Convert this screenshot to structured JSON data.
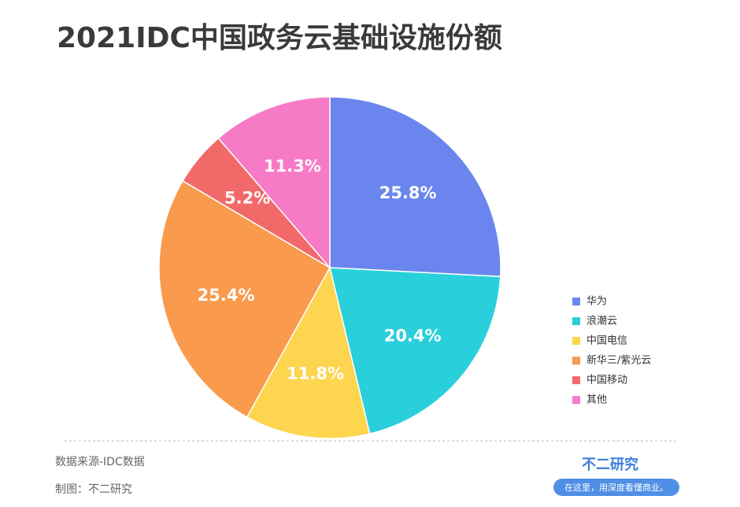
{
  "chart_data": {
    "type": "pie",
    "title": "2021IDC中国政务云基础设施份额",
    "categories": [
      "华为",
      "浪潮云",
      "中国电信",
      "新华三/紫光云",
      "中国移动",
      "其他"
    ],
    "values": [
      25.8,
      20.4,
      11.8,
      25.4,
      5.2,
      11.3
    ],
    "value_labels": [
      "25.8%",
      "20.4%",
      "11.8%",
      "25.4%",
      "5.2%",
      "11.3%"
    ],
    "colors": [
      "#6a86ee",
      "#2acfdc",
      "#fdd54f",
      "#f99a4c",
      "#f2696a",
      "#f77ac6"
    ],
    "legend": "right",
    "source": "数据来源-IDC数据",
    "credit": "制图：不二研究"
  },
  "brand": {
    "name": "不二研究",
    "slogan": "在这里，用深度看懂商业。"
  }
}
